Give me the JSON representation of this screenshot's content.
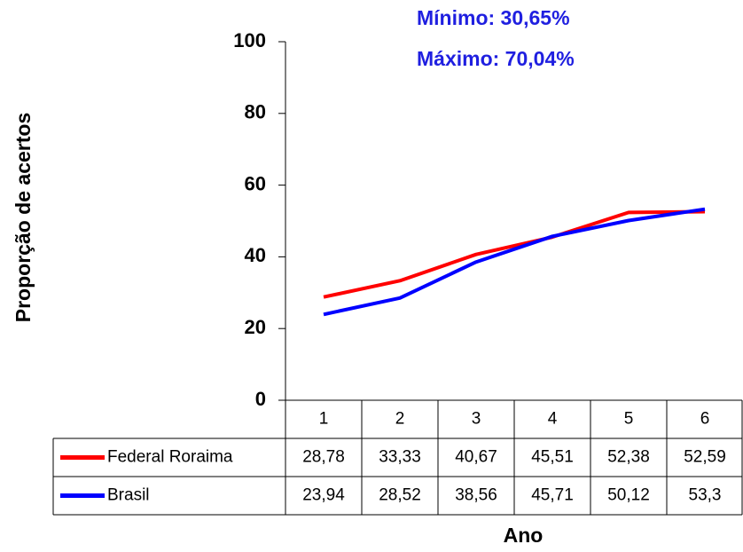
{
  "chart_data": {
    "type": "line",
    "annotations": [
      "Mínimo: 30,65%",
      "Máximo: 70,04%"
    ],
    "ylabel": "Proporção de acertos",
    "xlabel": "Ano",
    "categories": [
      "1",
      "2",
      "3",
      "4",
      "5",
      "6"
    ],
    "series": [
      {
        "name": "Federal Roraima",
        "color": "#ff0000",
        "values": [
          28.78,
          33.33,
          40.67,
          45.51,
          52.38,
          52.59
        ],
        "value_labels": [
          "28,78",
          "33,33",
          "40,67",
          "45,51",
          "52,38",
          "52,59"
        ]
      },
      {
        "name": "Brasil",
        "color": "#0000ff",
        "values": [
          23.94,
          28.52,
          38.56,
          45.71,
          50.12,
          53.3
        ],
        "value_labels": [
          "23,94",
          "28,52",
          "38,56",
          "45,71",
          "50,12",
          "53,3"
        ]
      }
    ],
    "ylim": [
      0,
      100
    ],
    "yticks": [
      0,
      20,
      40,
      60,
      80,
      100
    ]
  }
}
